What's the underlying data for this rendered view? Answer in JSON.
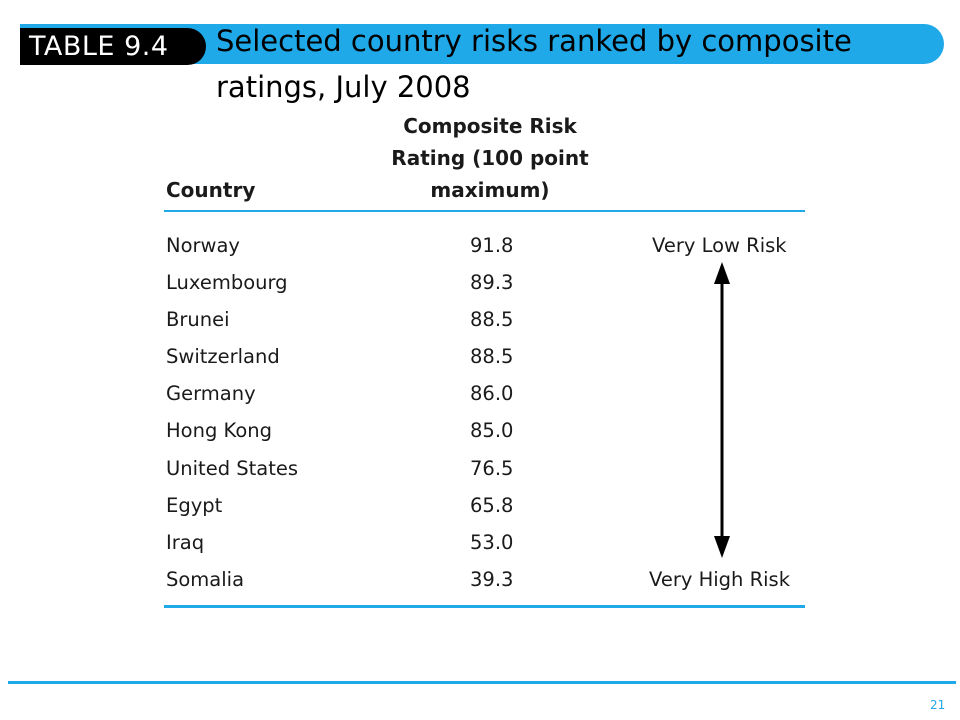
{
  "slide": {
    "tag": "TABLE 9.4",
    "title": "Selected country risks ranked by composite ratings, July 2008",
    "page_number": "21"
  },
  "table": {
    "headers": {
      "country": "Country",
      "rating": "Composite Risk Rating (100 point maximum)"
    },
    "rows": [
      {
        "country": "Norway",
        "rating": "91.8"
      },
      {
        "country": "Luxembourg",
        "rating": "89.3"
      },
      {
        "country": "Brunei",
        "rating": "88.5"
      },
      {
        "country": "Switzerland",
        "rating": "88.5"
      },
      {
        "country": "Germany",
        "rating": "86.0"
      },
      {
        "country": "Hong Kong",
        "rating": "85.0"
      },
      {
        "country": "United States",
        "rating": "76.5"
      },
      {
        "country": "Egypt",
        "rating": "65.8"
      },
      {
        "country": "Iraq",
        "rating": "53.0"
      },
      {
        "country": "Somalia",
        "rating": "39.3"
      }
    ],
    "scale": {
      "low_label": "Very Low Risk",
      "high_label": "Very High Risk"
    }
  },
  "colors": {
    "accent": "#1fa9e8",
    "tag_background": "#000000"
  }
}
